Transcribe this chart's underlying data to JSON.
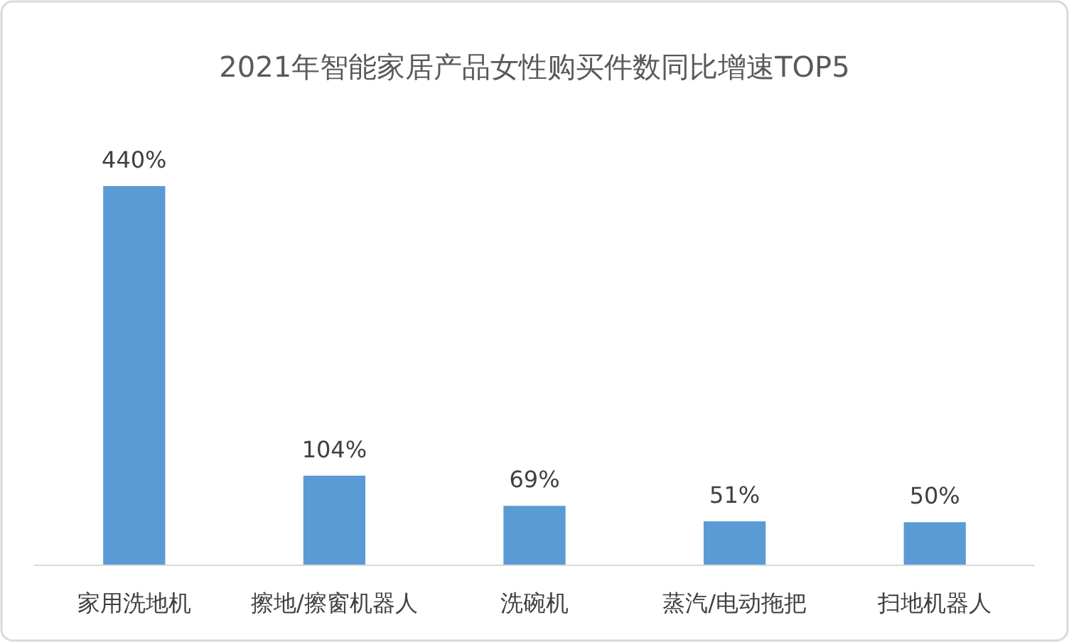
{
  "chart_data": {
    "type": "bar",
    "title": "2021年智能家居产品女性购买件数同比增速TOP5",
    "categories": [
      "家用洗地机",
      "擦地/擦窗机器人",
      "洗碗机",
      "蒸汽/电动拖把",
      "扫地机器人"
    ],
    "values": [
      440,
      104,
      69,
      51,
      50
    ],
    "value_labels": [
      "440%",
      "104%",
      "69%",
      "51%",
      "50%"
    ],
    "color": "#5b9bd5"
  }
}
